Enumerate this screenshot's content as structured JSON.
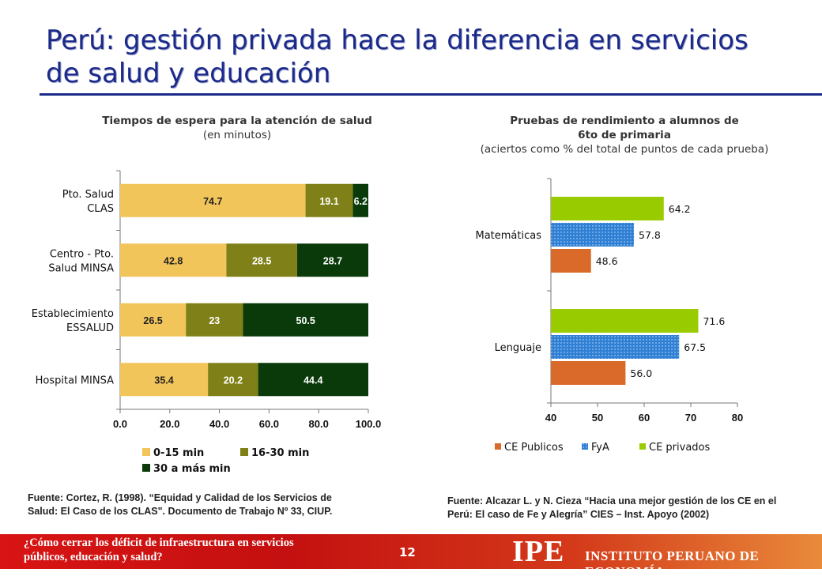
{
  "title": "Perú: gestión privada hace la diferencia en servicios de salud y educación",
  "left_panel": {
    "heading": "Tiempos de espera para la atención de salud",
    "subheading": "(en minutos)",
    "source": "Fuente: Cortez, R. (1998). “Equidad y Calidad de los Servicios de Salud: El Caso de los CLAS\". Documento de Trabajo Nº 33, CIUP."
  },
  "right_panel": {
    "heading_line1": "Pruebas de rendimiento a alumnos de",
    "heading_line2": "6to de primaria",
    "subheading": "(aciertos como % del total de puntos de cada prueba)",
    "source": "Fuente: Alcazar L. y N. Cieza “Hacia una mejor gestión de los CE en el Perú: El caso de Fe y Alegría” CIES – Inst. Apoyo (2002)"
  },
  "footer": {
    "question": "¿Cómo cerrar los déficit de infraestructura en servicios públicos, educación y salud?",
    "page_number": "12",
    "logo": "IPE",
    "org_name": "INSTITUTO PERUANO DE ECONOMÍA"
  },
  "colors": {
    "title": "#1b2a8a",
    "light_yellow": "#f2c55a",
    "olive": "#808018",
    "dark_green": "#0a3a0a",
    "orange": "#d96a2a",
    "blue": "#2f7fd4",
    "lime": "#99cc00"
  },
  "chart_data": [
    {
      "type": "bar",
      "orientation": "horizontal",
      "stacked": true,
      "categories": [
        [
          "Pto. Salud",
          "CLAS"
        ],
        [
          "Centro - Pto.",
          "Salud MINSA"
        ],
        [
          "Establecimiento",
          "ESSALUD"
        ],
        [
          "Hospital MINSA"
        ]
      ],
      "series": [
        {
          "name": "0-15 min",
          "values": [
            74.7,
            42.8,
            26.5,
            35.4
          ],
          "labels": [
            "74.7",
            "42.8",
            "26.5",
            "35.4"
          ]
        },
        {
          "name": "16-30 min",
          "values": [
            19.1,
            28.5,
            23.0,
            20.2
          ],
          "labels": [
            "19.1",
            "28.5",
            "23",
            "20.2"
          ]
        },
        {
          "name": "30 a más min",
          "values": [
            6.2,
            28.7,
            50.5,
            44.4
          ],
          "labels": [
            "6.2",
            "28.7",
            "50.5",
            "44.4"
          ]
        }
      ],
      "xlim": [
        0,
        100
      ],
      "xticks": [
        "0.0",
        "20.0",
        "40.0",
        "60.0",
        "80.0",
        "100.0"
      ],
      "legend": "bottom"
    },
    {
      "type": "bar",
      "orientation": "horizontal",
      "categories": [
        "Matemáticas",
        "Lenguaje"
      ],
      "series": [
        {
          "name": "CE Publicos",
          "values": [
            48.6,
            56.0
          ],
          "labels": [
            "48.6",
            "56.0"
          ]
        },
        {
          "name": "FyA",
          "values": [
            57.8,
            67.5
          ],
          "labels": [
            "57.8",
            "67.5"
          ]
        },
        {
          "name": "CE privados",
          "values": [
            64.2,
            71.6
          ],
          "labels": [
            "64.2",
            "71.6"
          ]
        }
      ],
      "xlim": [
        40,
        80
      ],
      "xticks": [
        "40",
        "50",
        "60",
        "70",
        "80"
      ],
      "legend": "bottom"
    }
  ]
}
